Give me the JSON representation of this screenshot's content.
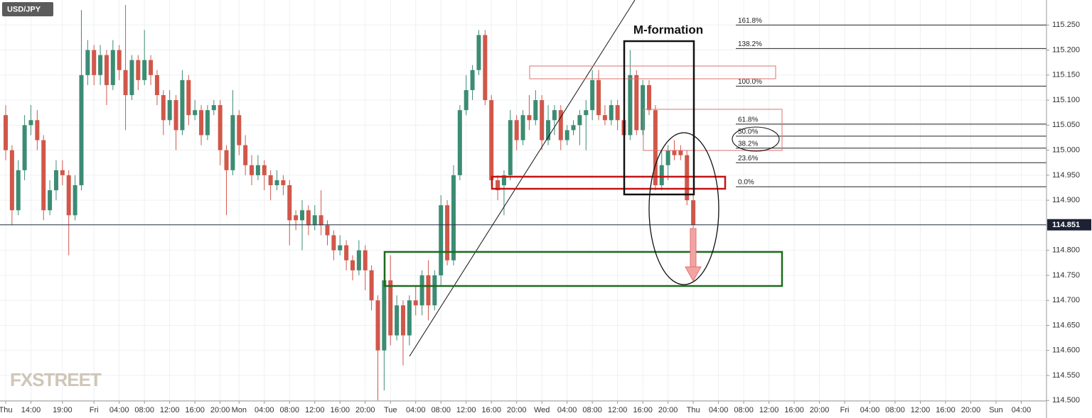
{
  "chart_data": {
    "type": "candlestick",
    "title": "USD/JPY",
    "watermark": "FXSTREET",
    "annotation": "M-formation",
    "up_color": "#3b8c73",
    "down_color": "#d0574a",
    "grid": true,
    "xlim": [
      -0.9,
      165
    ],
    "ylim": [
      114.499,
      115.3
    ],
    "last_price": 114.851,
    "x": [
      0,
      1,
      2,
      3,
      4,
      5,
      6,
      7,
      8,
      9,
      10,
      11,
      12,
      13,
      14,
      15,
      16,
      17,
      18,
      19,
      20,
      21,
      22,
      23,
      24,
      25,
      26,
      27,
      28,
      29,
      30,
      31,
      32,
      33,
      34,
      35,
      36,
      37,
      38,
      39,
      40,
      41,
      42,
      43,
      44,
      45,
      46,
      47,
      48,
      49,
      50,
      51,
      52,
      53,
      54,
      55,
      56,
      57,
      58,
      59,
      60,
      61,
      62,
      63,
      64,
      65,
      66,
      67,
      68,
      69,
      70,
      71,
      72,
      73,
      74,
      75,
      76,
      77,
      78,
      79,
      80,
      81,
      82,
      83,
      84,
      85,
      86,
      87,
      88,
      89,
      90,
      91,
      92,
      93,
      94,
      95,
      96,
      97,
      98,
      99,
      100,
      101,
      102,
      103,
      104,
      105,
      106,
      107,
      108,
      109
    ],
    "open": [
      115.07,
      115.0,
      114.88,
      114.96,
      115.05,
      115.06,
      115.02,
      114.88,
      114.92,
      114.96,
      114.95,
      114.87,
      114.93,
      115.15,
      115.2,
      115.15,
      115.19,
      115.13,
      115.2,
      115.16,
      115.11,
      115.18,
      115.14,
      115.18,
      115.15,
      115.11,
      115.06,
      115.1,
      115.04,
      115.14,
      115.07,
      115.08,
      115.03,
      115.08,
      115.09,
      115.0,
      114.96,
      115.07,
      115.01,
      114.97,
      114.95,
      114.97,
      114.95,
      114.93,
      114.94,
      114.93,
      114.87,
      114.86,
      114.88,
      114.85,
      114.87,
      114.85,
      114.83,
      114.8,
      114.81,
      114.78,
      114.76,
      114.8,
      114.76,
      114.7,
      114.6,
      114.74,
      114.63,
      114.69,
      114.63,
      114.7,
      114.69,
      114.75,
      114.69,
      114.75,
      114.89,
      114.78,
      114.95,
      115.08,
      115.12,
      115.16,
      115.23,
      115.1,
      114.94,
      114.93,
      114.95,
      115.06,
      115.02,
      115.07,
      115.06,
      115.1,
      115.02,
      115.06,
      115.08,
      115.02,
      115.04,
      115.05,
      115.07,
      115.08,
      115.14,
      115.07,
      115.06,
      115.09,
      115.06,
      115.03,
      115.15,
      115.04,
      115.13,
      115.08,
      114.93,
      114.97,
      115.0,
      115.0,
      114.99,
      114.9
    ],
    "high": [
      115.09,
      115.01,
      114.98,
      115.07,
      115.09,
      115.08,
      115.03,
      114.94,
      114.98,
      114.98,
      114.96,
      114.95,
      115.28,
      115.22,
      115.21,
      115.21,
      115.2,
      115.22,
      115.21,
      115.29,
      115.19,
      115.19,
      115.24,
      115.19,
      115.16,
      115.12,
      115.12,
      115.11,
      115.16,
      115.15,
      115.1,
      115.09,
      115.09,
      115.1,
      115.1,
      115.01,
      115.12,
      115.08,
      115.03,
      114.99,
      114.99,
      114.98,
      114.96,
      114.96,
      114.95,
      114.94,
      114.88,
      114.9,
      114.89,
      114.89,
      114.92,
      114.86,
      114.84,
      114.83,
      114.82,
      114.79,
      114.82,
      114.81,
      114.77,
      114.71,
      114.79,
      114.79,
      114.71,
      114.7,
      114.71,
      114.73,
      114.76,
      114.78,
      114.76,
      114.91,
      114.9,
      114.97,
      115.09,
      115.15,
      115.17,
      115.24,
      115.24,
      115.11,
      114.95,
      114.96,
      115.08,
      115.07,
      115.08,
      115.11,
      115.12,
      115.11,
      115.09,
      115.09,
      115.09,
      115.05,
      115.06,
      115.08,
      115.1,
      115.16,
      115.16,
      115.09,
      115.1,
      115.1,
      115.07,
      115.2,
      115.16,
      115.14,
      115.14,
      115.09,
      115.0,
      115.01,
      115.02,
      115.01,
      115.0,
      114.91
    ],
    "low": [
      114.98,
      114.85,
      114.87,
      114.94,
      115.03,
      115.0,
      114.86,
      114.87,
      114.9,
      114.93,
      114.79,
      114.86,
      114.92,
      115.13,
      115.13,
      115.13,
      115.09,
      115.12,
      115.14,
      115.04,
      115.1,
      115.12,
      115.13,
      115.13,
      115.09,
      115.03,
      115.05,
      115.0,
      115.03,
      115.05,
      115.06,
      115.01,
      115.02,
      115.07,
      114.97,
      114.87,
      114.95,
      114.99,
      114.95,
      114.93,
      114.94,
      114.92,
      114.9,
      114.92,
      114.91,
      114.81,
      114.84,
      114.8,
      114.83,
      114.84,
      114.83,
      114.81,
      114.78,
      114.79,
      114.76,
      114.74,
      114.75,
      114.72,
      114.68,
      114.5,
      114.52,
      114.61,
      114.62,
      114.57,
      114.61,
      114.67,
      114.67,
      114.66,
      114.68,
      114.73,
      114.77,
      114.77,
      114.94,
      115.07,
      115.1,
      115.15,
      115.09,
      114.93,
      114.9,
      114.87,
      114.94,
      115.0,
      115.01,
      115.04,
      115.05,
      115.0,
      115.01,
      115.03,
      115.0,
      115.01,
      115.03,
      115.01,
      115.0,
      115.06,
      115.06,
      115.05,
      115.05,
      115.04,
      115.01,
      115.02,
      115.03,
      115.03,
      115.07,
      114.92,
      114.92,
      114.94,
      114.98,
      114.98,
      114.89,
      114.845
    ],
    "close": [
      115.0,
      114.88,
      114.96,
      115.05,
      115.06,
      115.02,
      114.88,
      114.92,
      114.96,
      114.95,
      114.87,
      114.93,
      115.15,
      115.2,
      115.15,
      115.19,
      115.13,
      115.2,
      115.16,
      115.11,
      115.18,
      115.14,
      115.18,
      115.15,
      115.11,
      115.06,
      115.1,
      115.04,
      115.14,
      115.07,
      115.08,
      115.03,
      115.08,
      115.09,
      115.0,
      114.96,
      115.07,
      115.01,
      114.97,
      114.95,
      114.97,
      114.95,
      114.93,
      114.94,
      114.93,
      114.86,
      114.86,
      114.88,
      114.85,
      114.87,
      114.85,
      114.83,
      114.8,
      114.81,
      114.78,
      114.76,
      114.8,
      114.76,
      114.7,
      114.6,
      114.74,
      114.63,
      114.69,
      114.63,
      114.7,
      114.69,
      114.75,
      114.69,
      114.75,
      114.89,
      114.78,
      114.95,
      115.08,
      115.12,
      115.16,
      115.23,
      115.1,
      114.94,
      114.92,
      114.95,
      115.06,
      115.02,
      115.07,
      115.06,
      115.1,
      115.02,
      115.06,
      115.08,
      115.02,
      115.04,
      115.05,
      115.07,
      115.08,
      115.14,
      115.07,
      115.06,
      115.09,
      115.06,
      115.03,
      115.15,
      115.04,
      115.13,
      115.08,
      114.93,
      114.97,
      115.0,
      114.99,
      114.99,
      114.9,
      114.851
    ],
    "yticks": [
      {
        "value": 115.25,
        "label": "115.250"
      },
      {
        "value": 115.2,
        "label": "115.200"
      },
      {
        "value": 115.15,
        "label": "115.150"
      },
      {
        "value": 115.1,
        "label": "115.100"
      },
      {
        "value": 115.05,
        "label": "115.050"
      },
      {
        "value": 115.0,
        "label": "115.000"
      },
      {
        "value": 114.95,
        "label": "114.950"
      },
      {
        "value": 114.9,
        "label": "114.900"
      },
      {
        "value": 114.85,
        "label": "114.850"
      },
      {
        "value": 114.8,
        "label": "114.800"
      },
      {
        "value": 114.75,
        "label": "114.750"
      },
      {
        "value": 114.7,
        "label": "114.700"
      },
      {
        "value": 114.65,
        "label": "114.650"
      },
      {
        "value": 114.6,
        "label": "114.600"
      },
      {
        "value": 114.55,
        "label": "114.550"
      },
      {
        "value": 114.5,
        "label": "114.500"
      }
    ],
    "xticks": [
      {
        "value": 0,
        "label": "Thu"
      },
      {
        "value": 4,
        "label": "14:00"
      },
      {
        "value": 9,
        "label": "19:00"
      },
      {
        "value": 14,
        "label": "Fri"
      },
      {
        "value": 18,
        "label": "04:00"
      },
      {
        "value": 22,
        "label": "08:00"
      },
      {
        "value": 26,
        "label": "12:00"
      },
      {
        "value": 30,
        "label": "16:00"
      },
      {
        "value": 34,
        "label": "20:00"
      },
      {
        "value": 37,
        "label": "Mon"
      },
      {
        "value": 41,
        "label": "04:00"
      },
      {
        "value": 45,
        "label": "08:00"
      },
      {
        "value": 49,
        "label": "12:00"
      },
      {
        "value": 53,
        "label": "16:00"
      },
      {
        "value": 57,
        "label": "20:00"
      },
      {
        "value": 61,
        "label": "Tue"
      },
      {
        "value": 65,
        "label": "04:00"
      },
      {
        "value": 69,
        "label": "08:00"
      },
      {
        "value": 73,
        "label": "12:00"
      },
      {
        "value": 77,
        "label": "16:00"
      },
      {
        "value": 81,
        "label": "20:00"
      },
      {
        "value": 85,
        "label": "Wed"
      },
      {
        "value": 89,
        "label": "04:00"
      },
      {
        "value": 93,
        "label": "08:00"
      },
      {
        "value": 97,
        "label": "12:00"
      },
      {
        "value": 101,
        "label": "16:00"
      },
      {
        "value": 105,
        "label": "20:00"
      },
      {
        "value": 109,
        "label": "Thu"
      },
      {
        "value": 113,
        "label": "04:00"
      },
      {
        "value": 117,
        "label": "08:00"
      },
      {
        "value": 121,
        "label": "12:00"
      },
      {
        "value": 125,
        "label": "16:00"
      },
      {
        "value": 129,
        "label": "20:00"
      },
      {
        "value": 133,
        "label": "Fri"
      },
      {
        "value": 137,
        "label": "04:00"
      },
      {
        "value": 141,
        "label": "08:00"
      },
      {
        "value": 145,
        "label": "12:00"
      },
      {
        "value": 149,
        "label": "16:00"
      },
      {
        "value": 153,
        "label": "20:00"
      },
      {
        "value": 157,
        "label": "Sun"
      },
      {
        "value": 161,
        "label": "04:00"
      }
    ],
    "fib_levels": [
      {
        "label": "161.8%",
        "value": 115.25
      },
      {
        "label": "138.2%",
        "value": 115.203
      },
      {
        "label": "100.0%",
        "value": 115.128
      },
      {
        "label": "61.8%",
        "value": 115.052
      },
      {
        "label": "50.0%",
        "value": 115.028
      },
      {
        "label": "38.2%",
        "value": 115.004
      },
      {
        "label": "23.6%",
        "value": 114.975
      },
      {
        "label": "0.0%",
        "value": 114.927
      }
    ]
  }
}
